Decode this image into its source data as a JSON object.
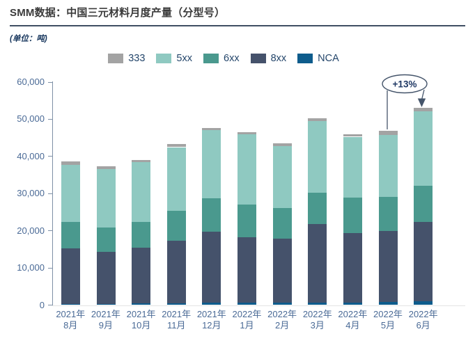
{
  "header": {
    "title": "SMM数据：中国三元材料月度产量（分型号）",
    "unit_label": "(单位：吨)"
  },
  "chart_data": {
    "type": "bar",
    "stacked": true,
    "title": "SMM数据：中国三元材料月度产量（分型号）",
    "unit": "吨",
    "legend_position": "top",
    "grid": false,
    "ylim": [
      0,
      60000
    ],
    "ytick_step": 10000,
    "ytick_labels": [
      "0",
      "10,000",
      "20,000",
      "30,000",
      "40,000",
      "50,000",
      "60,000"
    ],
    "categories": [
      {
        "year": "2021年",
        "month": "8月"
      },
      {
        "year": "2021年",
        "month": "9月"
      },
      {
        "year": "2021年",
        "month": "10月"
      },
      {
        "year": "2021年",
        "month": "11月"
      },
      {
        "year": "2021年",
        "month": "12月"
      },
      {
        "year": "2022年",
        "month": "1月"
      },
      {
        "year": "2022年",
        "month": "2月"
      },
      {
        "year": "2022年",
        "month": "3月"
      },
      {
        "year": "2022年",
        "month": "4月"
      },
      {
        "year": "2022年",
        "month": "5月"
      },
      {
        "year": "2022年",
        "month": "6月"
      }
    ],
    "stack_order": [
      "NCA",
      "8xx",
      "6xx",
      "5xx",
      "333"
    ],
    "legend_order": [
      "333",
      "5xx",
      "6xx",
      "8xx",
      "NCA"
    ],
    "series": [
      {
        "name": "333",
        "color": "#a3a3a3",
        "values": [
          900,
          800,
          600,
          800,
          600,
          600,
          700,
          800,
          700,
          1100,
          1000
        ]
      },
      {
        "name": "5xx",
        "color": "#8fc9c1",
        "values": [
          15500,
          15700,
          16100,
          17200,
          18300,
          18900,
          16600,
          19200,
          16400,
          16700,
          20000
        ]
      },
      {
        "name": "6xx",
        "color": "#4a998e",
        "values": [
          7000,
          6600,
          6900,
          8000,
          9100,
          8900,
          8300,
          8400,
          9600,
          9100,
          9700
        ]
      },
      {
        "name": "8xx",
        "color": "#45526b",
        "values": [
          15000,
          14000,
          15000,
          16800,
          19100,
          17600,
          17300,
          21200,
          18700,
          19200,
          21400
        ]
      },
      {
        "name": "NCA",
        "color": "#0e5c8c",
        "values": [
          200,
          200,
          300,
          400,
          500,
          500,
          500,
          600,
          500,
          700,
          900
        ]
      }
    ],
    "totals": [
      38600,
      37300,
      38900,
      43200,
      47600,
      46500,
      43400,
      50200,
      45900,
      46800,
      53000
    ],
    "annotation": {
      "label": "+13%",
      "target": "2022年6月",
      "baseline": "2022年5月"
    }
  },
  "colors": {
    "axis": "#7e90a6",
    "tick_label": "#4a6a96",
    "title_text": "#3a3a3a",
    "divider": "#3f4e63",
    "unit_text": "#17365d",
    "legend_label": "#24466b",
    "annotation": "#44546a"
  }
}
